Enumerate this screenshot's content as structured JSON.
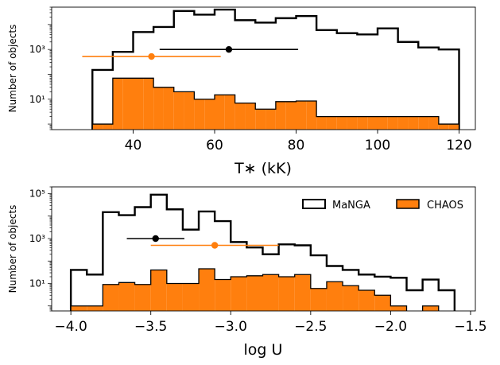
{
  "chart_data": [
    {
      "type": "histogram",
      "xlabel": "T∗ (kK)",
      "ylabel": "Number of objects",
      "yscale": "log",
      "xlim": [
        20,
        124
      ],
      "ylim": [
        0.6,
        50000
      ],
      "xticks": [
        40,
        60,
        80,
        100,
        120
      ],
      "xtick_labels": [
        "40",
        "60",
        "80",
        "100",
        "120"
      ],
      "yticks": [
        10,
        1000
      ],
      "ytick_labels": [
        "10¹",
        "10³"
      ],
      "bin_edges": [
        30,
        32.5,
        35,
        37.5,
        40,
        42.5,
        45,
        47.5,
        50,
        52.5,
        55,
        57.5,
        60,
        62.5,
        65,
        67.5,
        70,
        72.5,
        75,
        77.5,
        80,
        82.5,
        85,
        87.5,
        90,
        92.5,
        95,
        97.5,
        100,
        102.5,
        105,
        107.5,
        110,
        112.5,
        115,
        117.5,
        120
      ],
      "series": [
        {
          "name": "MaNGA",
          "style": "step",
          "color": "#000000",
          "values": [
            150,
            150,
            800,
            800,
            5000,
            5000,
            8000,
            8000,
            35000,
            35000,
            25000,
            25000,
            40000,
            40000,
            15000,
            15000,
            12000,
            12000,
            18000,
            18000,
            22000,
            22000,
            6000,
            6000,
            4500,
            4500,
            4000,
            4000,
            7000,
            7000,
            2000,
            2000,
            1200,
            1200,
            1000,
            1000
          ]
        },
        {
          "name": "CHAOS",
          "style": "filled",
          "color": "#ff7f0e",
          "values": [
            1,
            1,
            70,
            70,
            70,
            70,
            30,
            30,
            20,
            20,
            10,
            10,
            15,
            15,
            7,
            7,
            4,
            4,
            8,
            8,
            8.5,
            8.5,
            2,
            2,
            2,
            2,
            2,
            2,
            2,
            2,
            2,
            2,
            2,
            2,
            1,
            1
          ]
        }
      ],
      "error_bars": [
        {
          "series": "MaNGA",
          "x": 63.5,
          "y": 1000,
          "xerr": [
            17,
            17
          ],
          "color": "#000000"
        },
        {
          "series": "CHAOS",
          "x": 44.5,
          "y": 520,
          "xerr": [
            17,
            17
          ],
          "color": "#ff7f0e"
        }
      ]
    },
    {
      "type": "histogram",
      "xlabel": "log U",
      "ylabel": "Number of objects",
      "yscale": "log",
      "xlim": [
        -4.12,
        -1.47
      ],
      "ylim": [
        0.6,
        200000
      ],
      "xticks": [
        -4.0,
        -3.5,
        -3.0,
        -2.5,
        -2.0,
        -1.5
      ],
      "xtick_labels": [
        "−4.0",
        "−3.5",
        "−3.0",
        "−2.5",
        "−2.0",
        "−1.5"
      ],
      "yticks": [
        10,
        1000,
        100000
      ],
      "ytick_labels": [
        "10¹",
        "10³",
        "10⁵"
      ],
      "bin_edges": [
        -4.0,
        -3.9,
        -3.8,
        -3.7,
        -3.6,
        -3.5,
        -3.4,
        -3.3,
        -3.2,
        -3.1,
        -3.0,
        -2.9,
        -2.8,
        -2.7,
        -2.6,
        -2.5,
        -2.4,
        -2.3,
        -2.2,
        -2.1,
        -2.0,
        -1.9,
        -1.8,
        -1.7,
        -1.6
      ],
      "legend": {
        "position": "upper right",
        "entries": [
          "MaNGA",
          "CHAOS"
        ]
      },
      "series": [
        {
          "name": "MaNGA",
          "style": "step",
          "color": "#000000",
          "values": [
            40,
            25,
            15000,
            11000,
            25000,
            90000,
            20000,
            2500,
            16000,
            6000,
            700,
            400,
            200,
            550,
            500,
            180,
            60,
            40,
            25,
            20,
            18,
            5,
            15,
            5
          ]
        },
        {
          "name": "CHAOS",
          "style": "filled",
          "color": "#ff7f0e",
          "values": [
            1,
            1,
            9,
            11,
            9,
            40,
            10,
            10,
            45,
            15,
            20,
            22,
            25,
            20,
            25,
            6,
            12,
            8,
            5,
            3,
            1,
            0,
            1,
            0
          ]
        }
      ],
      "error_bars": [
        {
          "series": "MaNGA",
          "x": -3.47,
          "y": 1000,
          "xerr": [
            0.18,
            0.18
          ],
          "color": "#000000"
        },
        {
          "series": "CHAOS",
          "x": -3.1,
          "y": 500,
          "xerr": [
            0.4,
            0.4
          ],
          "color": "#ff7f0e"
        }
      ]
    }
  ]
}
